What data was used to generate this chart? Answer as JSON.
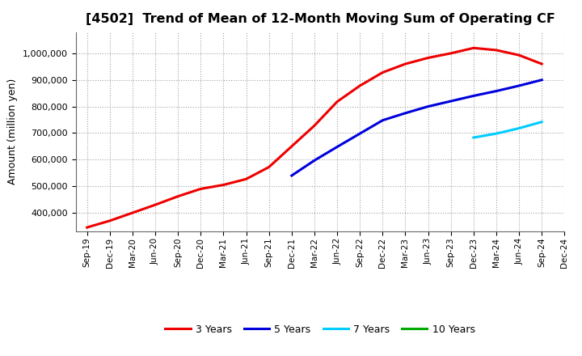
{
  "title": "[4502]  Trend of Mean of 12-Month Moving Sum of Operating CF",
  "ylabel": "Amount (million yen)",
  "background_color": "#ffffff",
  "grid_color": "#999999",
  "title_fontsize": 11.5,
  "axis_fontsize": 9,
  "ylim": [
    330000,
    1080000
  ],
  "yticks": [
    400000,
    500000,
    600000,
    700000,
    800000,
    900000,
    1000000
  ],
  "series": {
    "3 Years": {
      "color": "#ee0000",
      "x": [
        0,
        1,
        2,
        3,
        4,
        5,
        6,
        7,
        8,
        9,
        10,
        11,
        12,
        13,
        14,
        15,
        16,
        17,
        18,
        19,
        20
      ],
      "y": [
        345000,
        370000,
        400000,
        430000,
        462000,
        490000,
        505000,
        527000,
        572000,
        650000,
        728000,
        818000,
        878000,
        928000,
        960000,
        983000,
        1000000,
        1020000,
        1012000,
        993000,
        960000
      ]
    },
    "5 Years": {
      "color": "#0000dd",
      "x": [
        9,
        10,
        11,
        12,
        13,
        14,
        15,
        16,
        17,
        18,
        19,
        20
      ],
      "y": [
        540000,
        597000,
        648000,
        698000,
        748000,
        775000,
        800000,
        820000,
        840000,
        858000,
        878000,
        900000
      ]
    },
    "7 Years": {
      "color": "#00ccff",
      "x": [
        17,
        18,
        19,
        20
      ],
      "y": [
        683000,
        698000,
        718000,
        742000
      ]
    },
    "10 Years": {
      "color": "#00aa00",
      "x": [],
      "y": []
    }
  },
  "xtick_labels": [
    "Sep-19",
    "Dec-19",
    "Mar-20",
    "Jun-20",
    "Sep-20",
    "Dec-20",
    "Mar-21",
    "Jun-21",
    "Sep-21",
    "Dec-21",
    "Mar-22",
    "Jun-22",
    "Sep-22",
    "Dec-22",
    "Mar-23",
    "Jun-23",
    "Sep-23",
    "Dec-23",
    "Mar-24",
    "Jun-24",
    "Sep-24",
    "Dec-24"
  ],
  "legend_entries": [
    "3 Years",
    "5 Years",
    "7 Years",
    "10 Years"
  ],
  "legend_colors": [
    "#ee0000",
    "#0000dd",
    "#00ccff",
    "#00aa00"
  ]
}
